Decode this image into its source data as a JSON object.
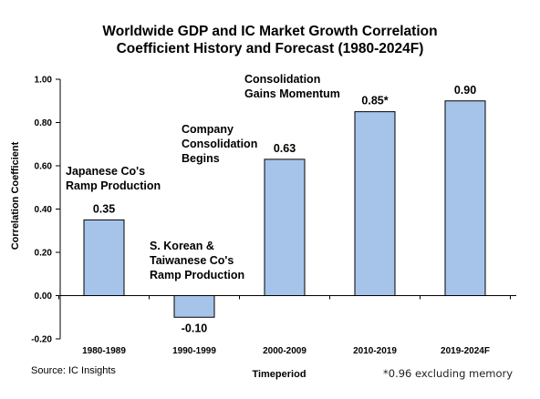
{
  "chart_data": {
    "type": "bar",
    "title_lines": [
      "Worldwide GDP and IC Market Growth Correlation",
      "Coefficient History and Forecast (1980-2024F)"
    ],
    "xlabel": "Timeperiod",
    "ylabel": "Correlation Coefficient",
    "categories": [
      "1980-1989",
      "1990-1999",
      "2000-2009",
      "2010-2019",
      "2019-2024F"
    ],
    "values": [
      0.35,
      -0.1,
      0.63,
      0.85,
      0.9
    ],
    "value_labels": [
      "0.35",
      "-0.10",
      "0.63",
      "0.85*",
      "0.90"
    ],
    "ylim": [
      -0.2,
      1.0
    ],
    "yticks": [
      1.0,
      0.8,
      0.6,
      0.4,
      0.2,
      0.0,
      -0.2
    ],
    "ytick_labels": [
      "1.00",
      "0.80",
      "0.60",
      "0.40",
      "0.20",
      "0.00",
      "-0.20"
    ],
    "grid": false,
    "legend": "none",
    "bar_color": "#a6c4ea",
    "bar_edge_color": "#000000",
    "annotations": [
      {
        "lines": [
          "Japanese Co's",
          "Ramp Production"
        ]
      },
      {
        "lines": [
          "S. Korean &",
          "Taiwanese Co's",
          "Ramp Production"
        ]
      },
      {
        "lines": [
          "Company",
          "Consolidation",
          "Begins"
        ]
      },
      {
        "lines": [
          "Consolidation",
          "Gains Momentum"
        ]
      }
    ],
    "source": "Source: IC Insights",
    "footnote": "*0.96 excluding memory"
  }
}
